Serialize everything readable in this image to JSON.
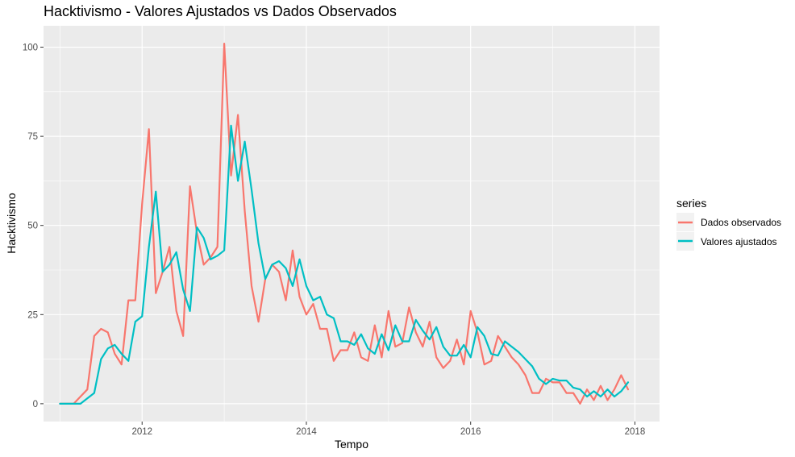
{
  "chart_data": {
    "type": "line",
    "title": "Hacktivismo - Valores Ajustados vs Dados Observados",
    "xlabel": "Tempo",
    "ylabel": "Hacktivismo",
    "xlim": [
      2010.8,
      2018.3
    ],
    "ylim": [
      -5,
      106
    ],
    "x_ticks": [
      2012,
      2014,
      2016,
      2018
    ],
    "y_ticks": [
      0,
      25,
      50,
      75,
      100
    ],
    "grid": true,
    "legend": {
      "title": "series",
      "position": "right"
    },
    "x": [
      2011.0,
      2011.083,
      2011.167,
      2011.25,
      2011.333,
      2011.417,
      2011.5,
      2011.583,
      2011.667,
      2011.75,
      2011.833,
      2011.917,
      2012.0,
      2012.083,
      2012.167,
      2012.25,
      2012.333,
      2012.417,
      2012.5,
      2012.583,
      2012.667,
      2012.75,
      2012.833,
      2012.917,
      2013.0,
      2013.083,
      2013.167,
      2013.25,
      2013.333,
      2013.417,
      2013.5,
      2013.583,
      2013.667,
      2013.75,
      2013.833,
      2013.917,
      2014.0,
      2014.083,
      2014.167,
      2014.25,
      2014.333,
      2014.417,
      2014.5,
      2014.583,
      2014.667,
      2014.75,
      2014.833,
      2014.917,
      2015.0,
      2015.083,
      2015.167,
      2015.25,
      2015.333,
      2015.417,
      2015.5,
      2015.583,
      2015.667,
      2015.75,
      2015.833,
      2015.917,
      2016.0,
      2016.083,
      2016.167,
      2016.25,
      2016.333,
      2016.417,
      2016.5,
      2016.583,
      2016.667,
      2016.75,
      2016.833,
      2016.917,
      2017.0,
      2017.083,
      2017.167,
      2017.25,
      2017.333,
      2017.417,
      2017.5,
      2017.583,
      2017.667,
      2017.75,
      2017.833,
      2017.917
    ],
    "series": [
      {
        "name": "Dados observados",
        "color": "#F8766D",
        "values": [
          0,
          0,
          0,
          2,
          4,
          19,
          21,
          20,
          14,
          11,
          29,
          29,
          56,
          77,
          31,
          37,
          44,
          26,
          19,
          61,
          48,
          39,
          41,
          44,
          101,
          64,
          81,
          54,
          33,
          23,
          35,
          39,
          37,
          29,
          43,
          30,
          25,
          28,
          21,
          21,
          12,
          15,
          15,
          20,
          13,
          12,
          22,
          13,
          26,
          16,
          17,
          27,
          20,
          16,
          23,
          13,
          10,
          12,
          18,
          11,
          26,
          20,
          11,
          12,
          19,
          16,
          13,
          11,
          8,
          3,
          3,
          7,
          6,
          6,
          3,
          3,
          0,
          4,
          1,
          5,
          1,
          4,
          8,
          4
        ]
      },
      {
        "name": "Valores ajustados",
        "color": "#00BFC4",
        "values": [
          0,
          0,
          0,
          0,
          1.5,
          3,
          12.5,
          15.5,
          16.5,
          14,
          12,
          23,
          24.5,
          44,
          59.5,
          37,
          39,
          42.5,
          32,
          26,
          49.5,
          46.5,
          40.5,
          41.5,
          43,
          78,
          62.5,
          73.5,
          60,
          45,
          35,
          39,
          40,
          38,
          33,
          40.5,
          33,
          29,
          30,
          25,
          24,
          17.5,
          17.5,
          16.5,
          19.5,
          15.5,
          14,
          19.5,
          15,
          22,
          17.5,
          17.5,
          23.5,
          20.5,
          18,
          21.5,
          16,
          13.5,
          13.5,
          16.5,
          13,
          21.5,
          19,
          14,
          13.5,
          17.5,
          16,
          14.5,
          12.5,
          10.5,
          7,
          5.5,
          7,
          6.5,
          6.5,
          4.5,
          4,
          2,
          3.5,
          2,
          4,
          2,
          3.5,
          6
        ]
      }
    ]
  }
}
